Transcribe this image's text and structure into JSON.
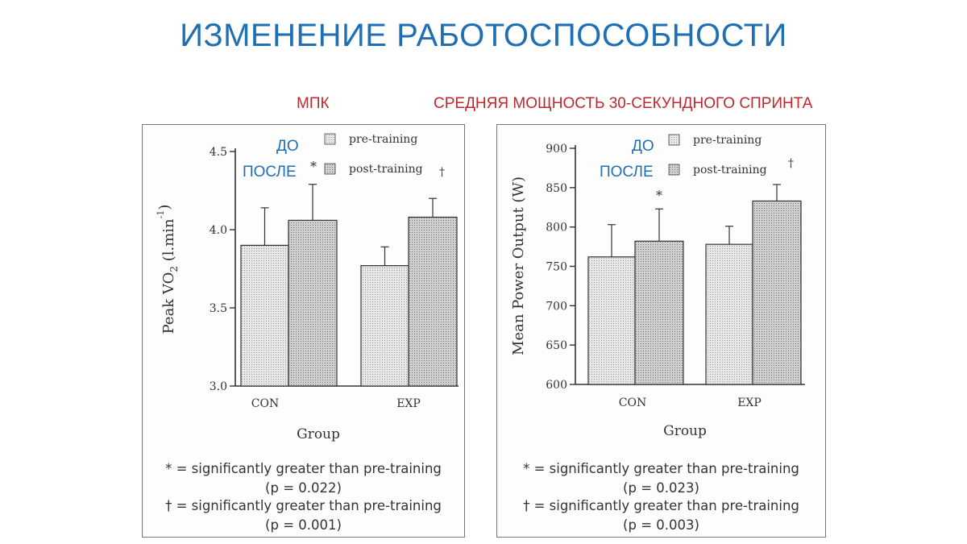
{
  "slide": {
    "title": "ИЗМЕНЕНИЕ РАБОТОСПОСОБНОСТИ",
    "subtitle_left": "МПК",
    "subtitle_right": "СРЕДНЯЯ МОЩНОСТЬ 30-СЕКУНДНОГО СПРИНТА",
    "label_before": "ДО",
    "label_after": "ПОСЛЕ"
  },
  "colors": {
    "title": "#1f6fb5",
    "subtitle": "#c0272d",
    "pre_fill": "#e6e6e6",
    "post_fill": "#cfcfcf"
  },
  "chart_data": [
    {
      "type": "bar",
      "ylabel": "Peak VO2 (l.min-1)",
      "ylabel_main": "Peak VO",
      "ylabel_sub": "2",
      "ylabel_tail": " (l.min",
      "ylabel_sup": "-1",
      "ylabel_close": ")",
      "xlabel": "Group",
      "categories": [
        "CON",
        "EXP"
      ],
      "ylim": [
        3.0,
        4.5
      ],
      "yticks": [
        "3.0",
        "3.5",
        "4.0",
        "4.5"
      ],
      "ytick_values": [
        3.0,
        3.5,
        4.0,
        4.5
      ],
      "legend": [
        "pre-training",
        "post-training"
      ],
      "legend_marks": [
        "",
        "*"
      ],
      "legend_dagger": "†",
      "series": [
        {
          "name": "pre-training",
          "values": [
            3.9,
            3.77
          ],
          "errors": [
            0.24,
            0.12
          ]
        },
        {
          "name": "post-training",
          "values": [
            4.06,
            4.08
          ],
          "errors": [
            0.23,
            0.12
          ]
        }
      ],
      "annotations": [
        "",
        "",
        "",
        ""
      ],
      "footnotes": [
        "* = significantly greater than pre-training",
        "(p = 0.022)",
        "† = significantly greater than pre-training",
        "(p = 0.001)"
      ]
    },
    {
      "type": "bar",
      "ylabel": "Mean Power Output (W)",
      "xlabel": "Group",
      "categories": [
        "CON",
        "EXP"
      ],
      "ylim": [
        600,
        900
      ],
      "yticks": [
        "600",
        "650",
        "700",
        "750",
        "800",
        "850",
        "900"
      ],
      "ytick_values": [
        600,
        650,
        700,
        750,
        800,
        850,
        900
      ],
      "legend": [
        "pre-training",
        "post-training"
      ],
      "legend_dagger": "†",
      "series": [
        {
          "name": "pre-training",
          "values": [
            762,
            778
          ],
          "errors": [
            41,
            23
          ]
        },
        {
          "name": "post-training",
          "values": [
            782,
            833
          ],
          "errors": [
            41,
            21
          ]
        }
      ],
      "bar_marks": [
        "*"
      ],
      "footnotes": [
        "* = significantly greater than pre-training",
        "(p = 0.023)",
        "† = significantly greater than pre-training",
        "(p = 0.003)"
      ]
    }
  ]
}
